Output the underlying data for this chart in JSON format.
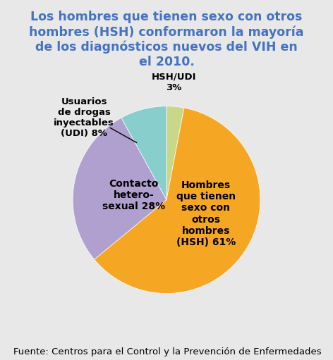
{
  "title": "Los hombres que tienen sexo con otros\nhombres (HSH) conformaron la mayoría\nde los diagnósticos nuevos del VIH en\nel 2010.",
  "title_color": "#4472C4",
  "background_color": "#E8E8E8",
  "slices": [
    3,
    61,
    28,
    8
  ],
  "colors": [
    "#C8D888",
    "#F5A623",
    "#B0A0D0",
    "#87CECC"
  ],
  "startangle": 90,
  "source_text": "Fuente: Centros para el Control y la Prevención de Enfermedades",
  "source_fontsize": 9.5,
  "title_fontsize": 12.5
}
